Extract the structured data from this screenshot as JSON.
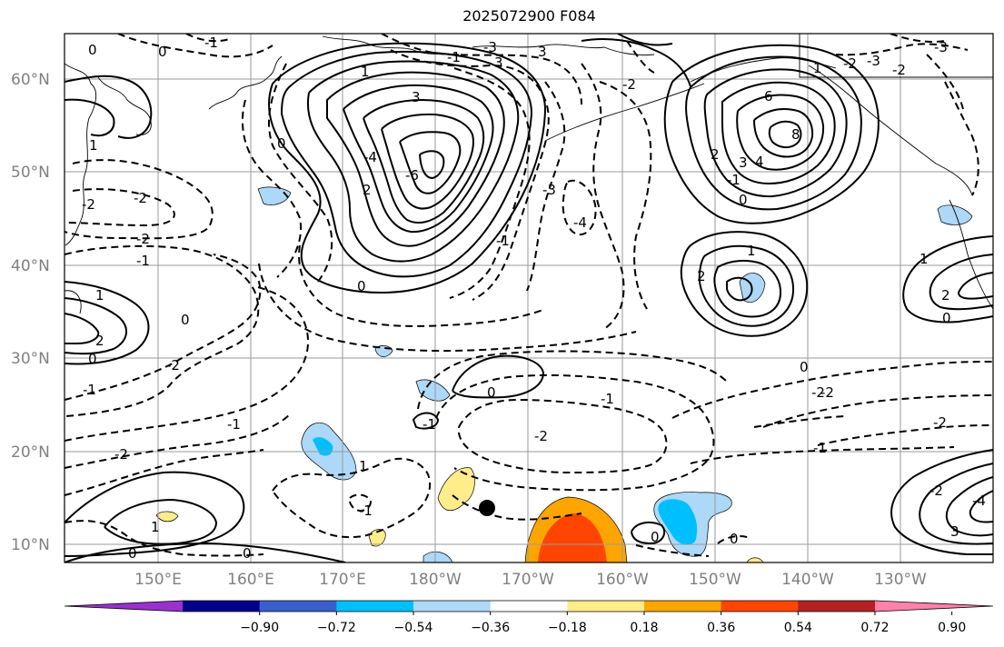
{
  "title": "2025072900 F084",
  "map": {
    "lat_labels": [
      "60°N",
      "50°N",
      "40°N",
      "30°N",
      "20°N",
      "10°N"
    ],
    "lon_labels": [
      "150°E",
      "160°E",
      "170°E",
      "180°W",
      "170°W",
      "160°W",
      "150°W",
      "140°W",
      "130°W"
    ],
    "contour_labels": [
      "0",
      "1",
      "1",
      "3",
      "3",
      "0",
      "2",
      "-1",
      "0",
      "3",
      "-4",
      "-6",
      "-2",
      "-1",
      "-2",
      "-2",
      "-1",
      "-1",
      "-3",
      "-1",
      "-2",
      "0",
      "-2",
      "-3",
      "-1",
      "0",
      "-1",
      "-1",
      "-4",
      "-2",
      "0",
      "1",
      "2",
      "-2",
      "1",
      "0",
      "1",
      "2",
      "6",
      "3",
      "4",
      "8",
      "2",
      "-1",
      "0",
      "0",
      "-2",
      "1",
      "2",
      "0",
      "3",
      "-2",
      "-1",
      "-2",
      "1",
      "-2",
      "-3",
      "-4",
      "0",
      "0",
      "0",
      "0",
      "-1",
      "1",
      "-3",
      "-2",
      "-2",
      "1"
    ],
    "marker": "black-dot"
  },
  "colorbar": {
    "colors": [
      "#9932cc",
      "#00008b",
      "#3a5fcd",
      "#00bfff",
      "#add8f7",
      "#ffffff",
      "#ffec8b",
      "#ffa500",
      "#ff4500",
      "#b22222",
      "#ff82ab"
    ],
    "tick_labels": [
      "−0.90",
      "−0.72",
      "−0.54",
      "−0.36",
      "−0.18",
      "0.18",
      "0.36",
      "0.54",
      "0.72",
      "0.90"
    ]
  }
}
